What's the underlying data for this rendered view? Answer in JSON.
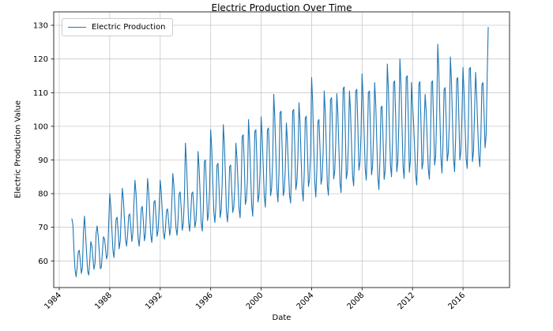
{
  "chart_data": {
    "type": "line",
    "title": "Electric Production Over Time",
    "xlabel": "Date",
    "ylabel": "Electric Production Value",
    "legend": {
      "position": "upper-left",
      "entries": [
        "Electric Production"
      ]
    },
    "grid": true,
    "colors": {
      "line": "#1f77b4",
      "grid": "#c8c8c8",
      "spine": "#000000",
      "text": "#000000"
    },
    "xlim": [
      1983.56,
      2019.69
    ],
    "ylim": [
      52.1,
      134.0
    ],
    "xticks": [
      1984,
      1988,
      1992,
      1996,
      2000,
      2004,
      2008,
      2012,
      2016
    ],
    "yticks": [
      60,
      70,
      80,
      90,
      100,
      110,
      120,
      130
    ],
    "x_tick_rotation_deg": 45,
    "series": [
      {
        "name": "Electric Production",
        "x_start": 1985.0,
        "x_step_years": 0.08333333,
        "frequency": "monthly",
        "n_points": 397,
        "values": [
          72.5,
          70.7,
          63.0,
          57.4,
          55.3,
          58.1,
          62.6,
          63.2,
          60.1,
          56.3,
          58.0,
          68.7,
          73.3,
          68.0,
          62.2,
          57.0,
          55.8,
          59.9,
          65.8,
          64.5,
          61.0,
          57.5,
          59.3,
          68.1,
          70.4,
          67.5,
          63.2,
          57.7,
          58.1,
          62.6,
          67.2,
          66.6,
          63.7,
          60.6,
          62.0,
          70.9,
          80.0,
          76.2,
          69.6,
          63.3,
          61.0,
          65.2,
          72.4,
          73.0,
          68.8,
          63.6,
          66.0,
          74.5,
          81.6,
          78.2,
          72.1,
          66.5,
          64.4,
          67.8,
          73.4,
          74.0,
          70.3,
          65.8,
          68.3,
          77.0,
          84.0,
          80.1,
          73.2,
          66.8,
          64.4,
          68.5,
          75.6,
          76.2,
          71.6,
          66.0,
          68.0,
          75.0,
          84.5,
          80.7,
          74.1,
          67.8,
          65.5,
          69.9,
          77.4,
          78.0,
          73.2,
          67.3,
          69.1,
          75.5,
          84.0,
          80.5,
          74.4,
          68.6,
          66.5,
          69.7,
          74.9,
          75.5,
          71.9,
          67.6,
          69.7,
          77.0,
          86.0,
          82.3,
          75.9,
          69.8,
          67.6,
          72.1,
          79.9,
          80.5,
          75.4,
          69.1,
          71.2,
          78.5,
          95.0,
          89.0,
          80.5,
          71.5,
          68.8,
          73.5,
          80.0,
          80.5,
          76.0,
          70.0,
          71.8,
          78.5,
          92.5,
          87.5,
          79.5,
          71.2,
          68.9,
          75.5,
          89.5,
          90.0,
          81.5,
          72.0,
          74.1,
          81.5,
          99.0,
          93.5,
          84.0,
          74.6,
          71.4,
          76.5,
          88.5,
          89.0,
          81.5,
          72.9,
          75.2,
          83.5,
          100.5,
          95.0,
          85.5,
          74.5,
          71.6,
          76.5,
          88.0,
          88.5,
          81.5,
          74.4,
          76.1,
          82.0,
          95.0,
          90.5,
          83.0,
          75.5,
          72.8,
          81.5,
          97.0,
          97.5,
          88.5,
          76.8,
          78.4,
          84.0,
          102.0,
          96.0,
          86.0,
          76.5,
          73.3,
          82.5,
          98.5,
          99.0,
          89.5,
          77.5,
          79.5,
          86.5,
          102.8,
          97.0,
          88.0,
          79.2,
          76.0,
          84.0,
          99.0,
          99.5,
          90.5,
          79.4,
          81.7,
          90.0,
          109.5,
          102.5,
          92.0,
          81.2,
          77.5,
          86.5,
          104.0,
          104.5,
          93.0,
          79.4,
          80.9,
          87.5,
          101.0,
          95.5,
          87.5,
          79.6,
          77.2,
          87.0,
          104.5,
          105.0,
          94.0,
          81.2,
          83.4,
          91.0,
          107.0,
          101.2,
          90.9,
          81.3,
          77.8,
          86.1,
          102.5,
          103.0,
          92.8,
          82.1,
          84.2,
          91.5,
          114.5,
          107.4,
          95.0,
          83.3,
          79.0,
          87.1,
          101.4,
          102.0,
          93.4,
          82.8,
          84.9,
          92.5,
          110.5,
          104.5,
          93.5,
          82.4,
          79.5,
          90.5,
          107.9,
          108.5,
          97.7,
          84.4,
          86.5,
          95.5,
          109.7,
          103.5,
          93.0,
          83.3,
          80.3,
          91.5,
          111.2,
          111.7,
          99.5,
          84.4,
          86.4,
          94.5,
          110.5,
          104.5,
          94.5,
          85.2,
          82.3,
          92.5,
          110.5,
          111.0,
          100.0,
          87.0,
          89.1,
          97.5,
          115.6,
          108.5,
          97.5,
          87.5,
          84.0,
          93.5,
          110.0,
          110.5,
          99.0,
          85.6,
          88.2,
          98.0,
          113.0,
          106.5,
          95.5,
          85.0,
          81.2,
          89.7,
          105.5,
          106.0,
          96.0,
          84.2,
          86.8,
          96.5,
          118.5,
          111.5,
          99.5,
          88.5,
          85.0,
          95.5,
          113.0,
          113.5,
          102.2,
          86.5,
          89.4,
          101.0,
          120.0,
          112.5,
          100.0,
          88.0,
          84.5,
          95.0,
          114.5,
          115.0,
          102.0,
          86.3,
          90.0,
          113.0,
          106.5,
          101.0,
          93.4,
          85.5,
          82.6,
          93.4,
          112.5,
          113.3,
          101.7,
          87.3,
          89.2,
          100.0,
          109.5,
          104.5,
          95.6,
          87.3,
          84.3,
          94.0,
          113.0,
          113.5,
          101.4,
          88.5,
          91.1,
          104.0,
          124.4,
          116.7,
          103.3,
          90.7,
          86.1,
          95.0,
          110.9,
          111.5,
          101.7,
          89.7,
          92.1,
          100.5,
          120.6,
          113.7,
          101.8,
          90.6,
          86.5,
          96.3,
          113.9,
          114.5,
          103.5,
          90.0,
          92.5,
          103.0,
          117.5,
          110.0,
          100.0,
          90.4,
          87.5,
          98.4,
          117.0,
          117.5,
          105.5,
          89.5,
          92.5,
          104.5,
          116.0,
          109.2,
          99.9,
          91.2,
          88.0,
          96.8,
          112.4,
          113.0,
          104.3,
          93.6,
          97.3,
          114.7,
          129.4
        ]
      }
    ]
  }
}
